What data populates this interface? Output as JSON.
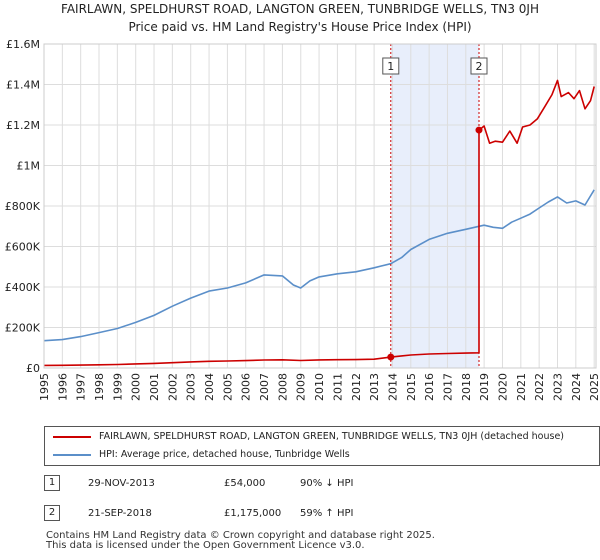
{
  "colors": {
    "property": "#cc0000",
    "hpi": "#5b8fc9",
    "shade": "#e8eefb",
    "vline": "#cc0000",
    "grid": "#dddddd"
  },
  "chart_data": {
    "type": "line",
    "title": "FAIRLAWN, SPELDHURST ROAD, LANGTON GREEN, TUNBRIDGE WELLS, TN3 0JH",
    "subtitle": "Price paid vs. HM Land Registry's House Price Index (HPI)",
    "ylim": [
      0,
      1600000
    ],
    "xlim": [
      1995,
      2025.1
    ],
    "y_ticks": [
      {
        "value": 0,
        "label": "£0"
      },
      {
        "value": 200000,
        "label": "£200K"
      },
      {
        "value": 400000,
        "label": "£400K"
      },
      {
        "value": 600000,
        "label": "£600K"
      },
      {
        "value": 800000,
        "label": "£800K"
      },
      {
        "value": 1000000,
        "label": "£1M"
      },
      {
        "value": 1200000,
        "label": "£1.2M"
      },
      {
        "value": 1400000,
        "label": "£1.4M"
      },
      {
        "value": 1600000,
        "label": "£1.6M"
      }
    ],
    "x_ticks": [
      "1995",
      "1996",
      "1997",
      "1998",
      "1999",
      "2000",
      "2001",
      "2002",
      "2003",
      "2004",
      "2005",
      "2006",
      "2007",
      "2008",
      "2009",
      "2010",
      "2011",
      "2012",
      "2013",
      "2014",
      "2015",
      "2016",
      "2017",
      "2018",
      "2019",
      "2020",
      "2021",
      "2022",
      "2023",
      "2024",
      "2025"
    ],
    "shade_range": [
      2013.91,
      2018.72
    ],
    "markers": [
      {
        "label": "1",
        "x": 2013.91,
        "y": 54000
      },
      {
        "label": "2",
        "x": 2018.72,
        "y": 1175000
      }
    ],
    "series": [
      {
        "name": "FAIRLAWN, SPELDHURST ROAD, LANGTON GREEN, TUNBRIDGE WELLS, TN3 0JH (detached house)",
        "color": "#cc0000",
        "points": [
          [
            1995.0,
            12800
          ],
          [
            1996.0,
            13500
          ],
          [
            1997.0,
            14500
          ],
          [
            1998.0,
            16000
          ],
          [
            1999.0,
            17500
          ],
          [
            2000.0,
            20000
          ],
          [
            2001.0,
            22500
          ],
          [
            2002.0,
            26000
          ],
          [
            2003.0,
            30000
          ],
          [
            2004.0,
            33000
          ],
          [
            2005.0,
            34500
          ],
          [
            2006.0,
            36500
          ],
          [
            2007.0,
            39500
          ],
          [
            2008.0,
            40500
          ],
          [
            2009.0,
            37000
          ],
          [
            2010.0,
            40000
          ],
          [
            2011.0,
            41000
          ],
          [
            2012.0,
            41500
          ],
          [
            2013.0,
            43500
          ],
          [
            2013.91,
            54000
          ],
          [
            2014.5,
            60000
          ],
          [
            2015.0,
            64000
          ],
          [
            2016.0,
            69000
          ],
          [
            2017.0,
            71500
          ],
          [
            2018.0,
            73500
          ],
          [
            2018.72,
            75000
          ],
          [
            2018.72,
            1175000
          ],
          [
            2019.0,
            1195000
          ],
          [
            2019.3,
            1110000
          ],
          [
            2019.6,
            1120000
          ],
          [
            2020.0,
            1115000
          ],
          [
            2020.4,
            1170000
          ],
          [
            2020.8,
            1110000
          ],
          [
            2021.1,
            1190000
          ],
          [
            2021.5,
            1200000
          ],
          [
            2021.9,
            1230000
          ],
          [
            2022.3,
            1290000
          ],
          [
            2022.7,
            1350000
          ],
          [
            2023.0,
            1420000
          ],
          [
            2023.2,
            1340000
          ],
          [
            2023.6,
            1360000
          ],
          [
            2023.9,
            1330000
          ],
          [
            2024.2,
            1370000
          ],
          [
            2024.5,
            1280000
          ],
          [
            2024.8,
            1320000
          ],
          [
            2025.0,
            1390000
          ]
        ]
      },
      {
        "name": "HPI: Average price, detached house, Tunbridge Wells",
        "color": "#5b8fc9",
        "points": [
          [
            1995.0,
            135000
          ],
          [
            1996.0,
            140000
          ],
          [
            1997.0,
            155000
          ],
          [
            1998.0,
            175000
          ],
          [
            1999.0,
            195000
          ],
          [
            2000.0,
            225000
          ],
          [
            2001.0,
            260000
          ],
          [
            2002.0,
            305000
          ],
          [
            2003.0,
            345000
          ],
          [
            2004.0,
            380000
          ],
          [
            2005.0,
            395000
          ],
          [
            2006.0,
            420000
          ],
          [
            2007.0,
            460000
          ],
          [
            2008.0,
            455000
          ],
          [
            2008.6,
            410000
          ],
          [
            2009.0,
            395000
          ],
          [
            2009.5,
            430000
          ],
          [
            2010.0,
            450000
          ],
          [
            2011.0,
            465000
          ],
          [
            2012.0,
            475000
          ],
          [
            2013.0,
            495000
          ],
          [
            2013.91,
            515000
          ],
          [
            2014.5,
            545000
          ],
          [
            2015.0,
            585000
          ],
          [
            2016.0,
            635000
          ],
          [
            2017.0,
            665000
          ],
          [
            2018.0,
            685000
          ],
          [
            2018.72,
            700000
          ],
          [
            2019.0,
            705000
          ],
          [
            2019.5,
            695000
          ],
          [
            2020.0,
            690000
          ],
          [
            2020.5,
            720000
          ],
          [
            2021.0,
            740000
          ],
          [
            2021.5,
            760000
          ],
          [
            2022.0,
            790000
          ],
          [
            2022.5,
            820000
          ],
          [
            2023.0,
            845000
          ],
          [
            2023.5,
            815000
          ],
          [
            2024.0,
            825000
          ],
          [
            2024.5,
            805000
          ],
          [
            2025.0,
            880000
          ]
        ]
      }
    ]
  },
  "legend": {
    "property_label": "FAIRLAWN, SPELDHURST ROAD, LANGTON GREEN, TUNBRIDGE WELLS, TN3 0JH (detached house)",
    "hpi_label": "HPI: Average price, detached house, Tunbridge Wells"
  },
  "transactions": [
    {
      "num": "1",
      "date": "29-NOV-2013",
      "price": "£54,000",
      "hpi": "90% ↓ HPI"
    },
    {
      "num": "2",
      "date": "21-SEP-2018",
      "price": "£1,175,000",
      "hpi": "59% ↑ HPI"
    }
  ],
  "footer": {
    "line1": "Contains HM Land Registry data © Crown copyright and database right 2025.",
    "line2": "This data is licensed under the Open Government Licence v3.0."
  }
}
